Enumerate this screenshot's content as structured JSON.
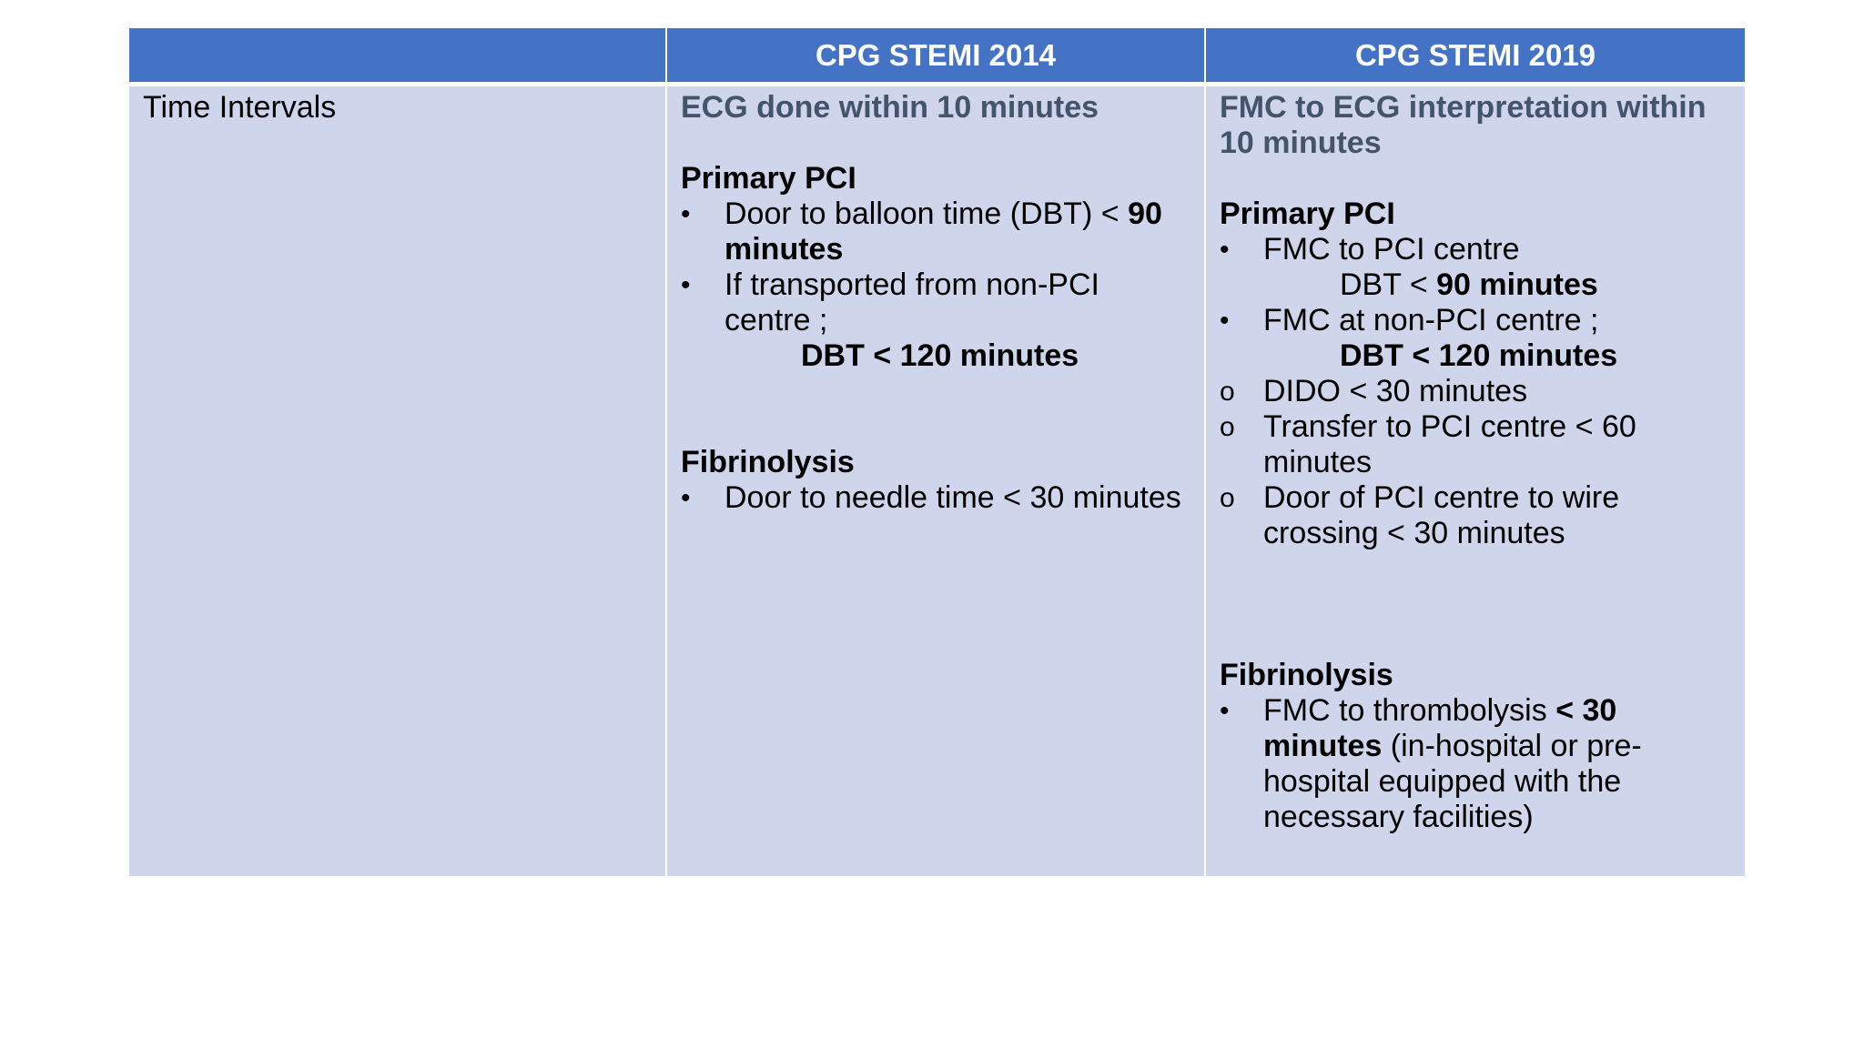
{
  "table": {
    "headers": [
      "",
      "CPG STEMI 2014",
      "CPG STEMI 2019"
    ],
    "row_label": "Time Intervals",
    "col2014": {
      "ecg_heading": "ECG done within 10 minutes",
      "pci_heading": "Primary PCI",
      "pci_item1_text": "Door to balloon time (DBT) < ",
      "pci_item1_bold": "90 minutes",
      "pci_item2_text": "If transported from non-PCI centre ;",
      "pci_item2_bold": "DBT < 120 minutes",
      "fib_heading": "Fibrinolysis",
      "fib_item1": "Door to needle time < 30 minutes"
    },
    "col2019": {
      "ecg_heading": "FMC to ECG interpretation within 10 minutes",
      "pci_heading": "Primary PCI",
      "pci_item1": "FMC to PCI centre",
      "pci_item1_sub_text": "DBT < ",
      "pci_item1_sub_bold": "90 minutes",
      "pci_item2": "FMC at non-PCI centre ;",
      "pci_item2_sub_bold": "DBT < 120 minutes",
      "sub_item1": "DIDO < 30 minutes",
      "sub_item2": "Transfer to PCI centre < 60 minutes",
      "sub_item3": "Door of PCI centre to wire crossing < 30 minutes",
      "fib_heading": "Fibrinolysis",
      "fib_item1_text": "FMC to thrombolysis ",
      "fib_item1_bold": "< 30 minutes",
      "fib_item1_rest": " (in-hospital or pre-hospital equipped with the necessary facilities)"
    }
  },
  "markers": {
    "bullet": "•",
    "circle": "o"
  },
  "colors": {
    "header_bg": "#4472c4",
    "cell_bg": "#cfd5ea",
    "muted_heading": "#44546a"
  }
}
